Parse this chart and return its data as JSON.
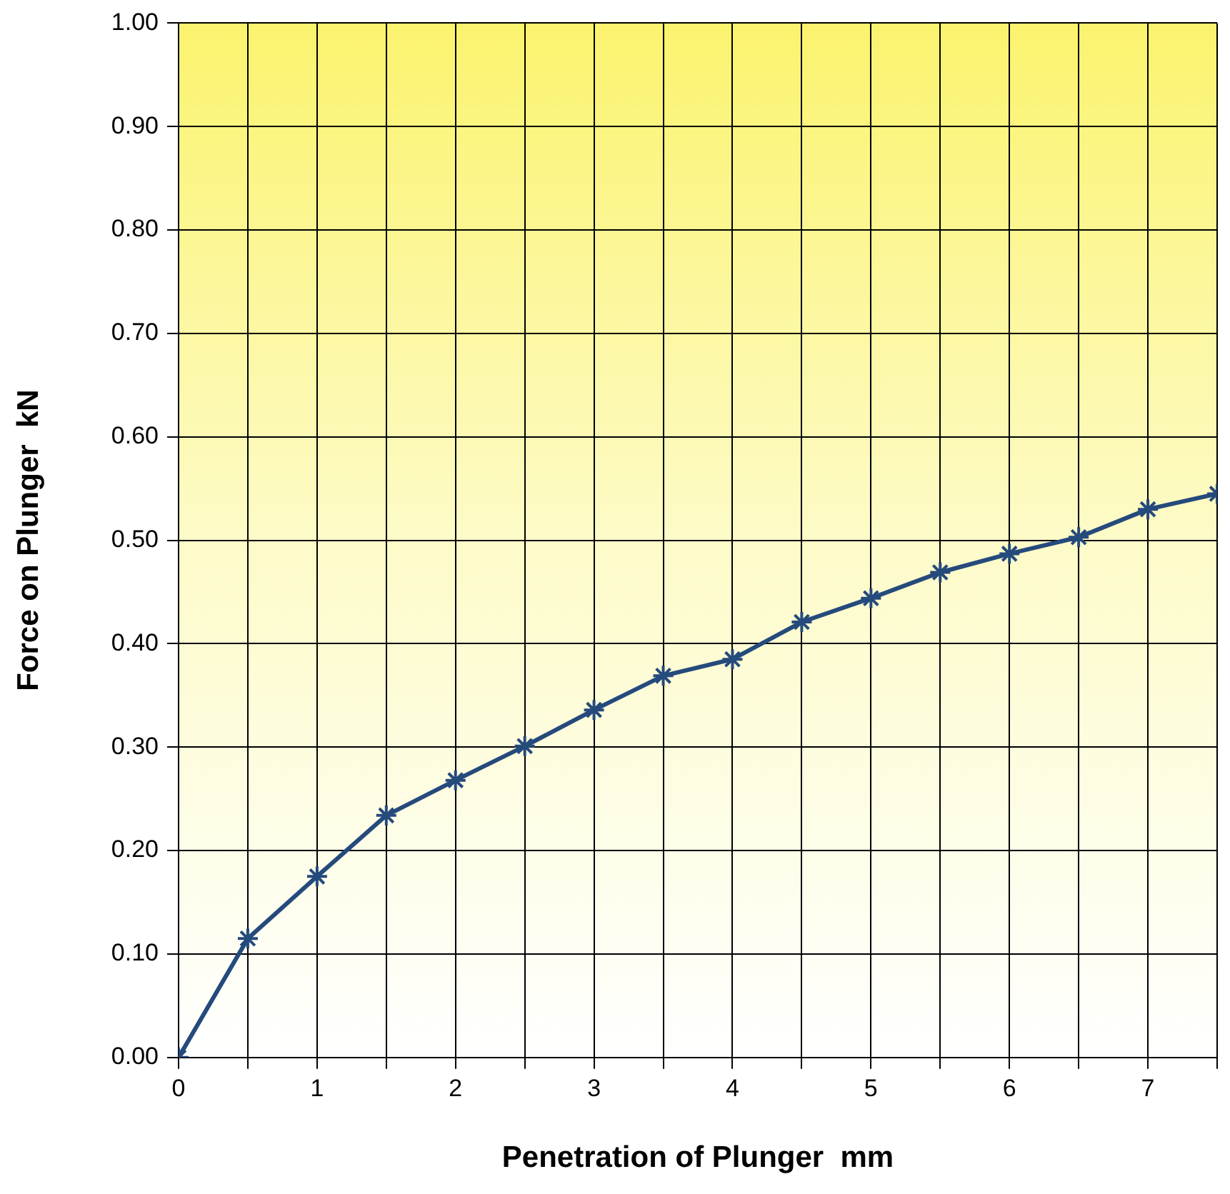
{
  "chart_data": {
    "type": "line",
    "xlabel": "Penetration of Plunger  mm",
    "ylabel": "Force on Plunger  kN",
    "x": [
      0,
      0.5,
      1,
      1.5,
      2,
      2.5,
      3,
      3.5,
      4,
      4.5,
      5,
      5.5,
      6,
      6.5,
      7,
      7.5
    ],
    "series": [
      {
        "color": "#254a7c",
        "values": [
          0,
          0.115,
          0.175,
          0.234,
          0.268,
          0.301,
          0.336,
          0.369,
          0.385,
          0.421,
          0.444,
          0.469,
          0.487,
          0.503,
          0.53,
          0.545
        ]
      }
    ],
    "xlim": [
      0,
      7.5
    ],
    "xticks": [
      0,
      {
        "value": 0.5,
        "label": null
      },
      1,
      {
        "value": 1.5,
        "label": null
      },
      2,
      {
        "value": 2.5,
        "label": null
      },
      3,
      {
        "value": 3.5,
        "label": null
      },
      4,
      {
        "value": 4.5,
        "label": null
      },
      5,
      {
        "value": 5.5,
        "label": null
      },
      6,
      {
        "value": 6.5,
        "label": null
      },
      7,
      {
        "value": 7.5,
        "label": null
      }
    ],
    "ylim": [
      0,
      1
    ],
    "yticks": [
      {
        "value": 0,
        "label": "0.00"
      },
      {
        "value": 0.1,
        "label": "0.10"
      },
      {
        "value": 0.2,
        "label": "0.20"
      },
      {
        "value": 0.3,
        "label": "0.30"
      },
      {
        "value": 0.4,
        "label": "0.40"
      },
      {
        "value": 0.5,
        "label": "0.50"
      },
      {
        "value": 0.6,
        "label": "0.60"
      },
      {
        "value": 0.7,
        "label": "0.70"
      },
      {
        "value": 0.8,
        "label": "0.80"
      },
      {
        "value": 0.9,
        "label": "0.90"
      },
      {
        "value": 1,
        "label": "1.00"
      }
    ],
    "grid": true,
    "legend": false,
    "marker": "cross",
    "line_style": "solid"
  }
}
